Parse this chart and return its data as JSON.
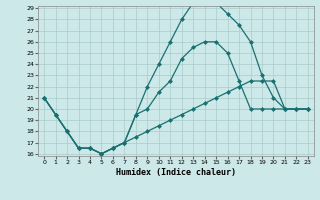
{
  "xlabel": "Humidex (Indice chaleur)",
  "bg_color": "#cce8e8",
  "line_color": "#1a7070",
  "grid_color": "#aacccc",
  "ylim": [
    16,
    29
  ],
  "xlim": [
    -0.5,
    23.5
  ],
  "yticks": [
    16,
    17,
    18,
    19,
    20,
    21,
    22,
    23,
    24,
    25,
    26,
    27,
    28,
    29
  ],
  "xticks": [
    0,
    1,
    2,
    3,
    4,
    5,
    6,
    7,
    8,
    9,
    10,
    11,
    12,
    13,
    14,
    15,
    16,
    17,
    18,
    19,
    20,
    21,
    22,
    23
  ],
  "line1_x": [
    0,
    1,
    2,
    3,
    4,
    5,
    6,
    7,
    8,
    9,
    10,
    11,
    12,
    13,
    14,
    15,
    16,
    17,
    18,
    19,
    20,
    21,
    22,
    23
  ],
  "line1_y": [
    21,
    19.5,
    18,
    16.5,
    16.5,
    16,
    16.5,
    17,
    17.5,
    18,
    18.5,
    19,
    19.5,
    20,
    20.5,
    21,
    21.5,
    22,
    22.5,
    22.5,
    22.5,
    20,
    20,
    20
  ],
  "line2_x": [
    0,
    1,
    2,
    3,
    4,
    5,
    6,
    7,
    8,
    9,
    10,
    11,
    12,
    13,
    14,
    15,
    16,
    17,
    18,
    19,
    20,
    21,
    22,
    23
  ],
  "line2_y": [
    21,
    19.5,
    18,
    16.5,
    16.5,
    16,
    16.5,
    17,
    19.5,
    20,
    21.5,
    22.5,
    24.5,
    25.5,
    26,
    26,
    25,
    22.5,
    20,
    20,
    20,
    20,
    20,
    20
  ],
  "line3_x": [
    0,
    1,
    2,
    3,
    4,
    5,
    6,
    7,
    8,
    9,
    10,
    11,
    12,
    13,
    14,
    15,
    16,
    17,
    18,
    19,
    20,
    21,
    22,
    23
  ],
  "line3_y": [
    21,
    19.5,
    18,
    16.5,
    16.5,
    16,
    16.5,
    17,
    19.5,
    22,
    24,
    26,
    28,
    29.5,
    29.5,
    29.5,
    28.5,
    27.5,
    26,
    23,
    21,
    20,
    20,
    20
  ]
}
